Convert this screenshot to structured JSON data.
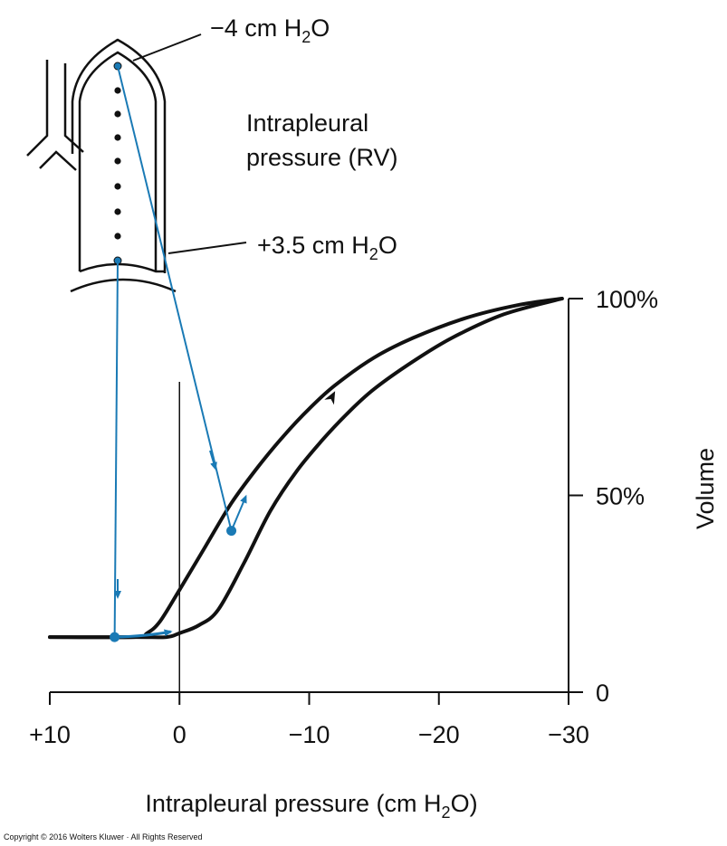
{
  "colors": {
    "curve": "#111111",
    "accent": "#1a7ab5",
    "axis": "#111111"
  },
  "lung": {
    "top_label": {
      "pre": "−4 cm H",
      "sub": "2",
      "post": "O"
    },
    "bottom_label": {
      "pre": "+3.5 cm H",
      "sub": "2",
      "post": "O"
    },
    "title_line1": "Intrapleural",
    "title_line2": "pressure (RV)"
  },
  "chart_data": {
    "type": "line",
    "xlabel": {
      "pre": "Intrapleural pressure (cm H",
      "sub": "2",
      "post": "O)"
    },
    "ylabel": "Volume",
    "x_ticks": [
      {
        "value": 10,
        "label": "+10"
      },
      {
        "value": 0,
        "label": "0"
      },
      {
        "value": -10,
        "label": "−10"
      },
      {
        "value": -20,
        "label": "−20"
      },
      {
        "value": -30,
        "label": "−30"
      }
    ],
    "y_ticks": [
      {
        "value": 0,
        "label": "0"
      },
      {
        "value": 50,
        "label": "50%"
      },
      {
        "value": 100,
        "label": "100%"
      }
    ],
    "xlim": [
      10,
      -30
    ],
    "ylim": [
      0,
      100
    ],
    "series": [
      {
        "role": "expiration",
        "points": [
          [
            10,
            14
          ],
          [
            3.5,
            14
          ],
          [
            2.5,
            15
          ],
          [
            1.5,
            18
          ],
          [
            0,
            26
          ],
          [
            -2,
            37
          ],
          [
            -4,
            48
          ],
          [
            -6,
            57
          ],
          [
            -8,
            65
          ],
          [
            -10,
            72
          ],
          [
            -12,
            78
          ],
          [
            -15,
            85
          ],
          [
            -18,
            90
          ],
          [
            -22,
            95
          ],
          [
            -26,
            98.3
          ],
          [
            -29.5,
            100
          ]
        ]
      },
      {
        "role": "inspiration",
        "points": [
          [
            10,
            14
          ],
          [
            3.5,
            14
          ],
          [
            1,
            14
          ],
          [
            0,
            15
          ],
          [
            -1.5,
            17
          ],
          [
            -3,
            21
          ],
          [
            -5,
            33
          ],
          [
            -7,
            46
          ],
          [
            -9,
            56
          ],
          [
            -11,
            64
          ],
          [
            -13,
            71
          ],
          [
            -15,
            77
          ],
          [
            -18,
            84
          ],
          [
            -21,
            90
          ],
          [
            -25,
            96
          ],
          [
            -29.5,
            100
          ]
        ]
      }
    ],
    "marked_points": [
      {
        "name": "apex-point",
        "x": -4,
        "y": 41
      },
      {
        "name": "base-point",
        "x": 5,
        "y": 14
      }
    ]
  },
  "copyright": "Copyright © 2016 Wolters Kluwer · All Rights Reserved"
}
